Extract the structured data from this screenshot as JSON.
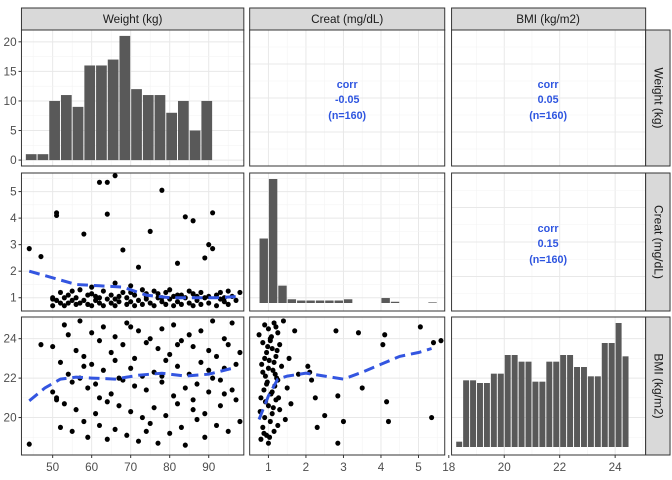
{
  "chart_data": {
    "type": "pairs",
    "variables": [
      "Weight (kg)",
      "Creat (mg/dL)",
      "BMI (kg/m2)"
    ],
    "colors": {
      "bar": "#595959",
      "point": "#000000",
      "smooth": "#3355e0",
      "corr": "#2e55e0",
      "strip": "#d9d9d9",
      "grid": "#ebebeb",
      "border": "#333333"
    },
    "axes": {
      "weight": {
        "range": [
          42,
          99
        ],
        "ticks": [
          50,
          60,
          70,
          80,
          90
        ]
      },
      "creat": {
        "range": [
          0.5,
          5.7
        ],
        "ticks": [
          1,
          2,
          3,
          4,
          5
        ]
      },
      "bmi": {
        "range": [
          18.1,
          25.1
        ],
        "ticks": [
          18,
          20,
          22,
          24
        ],
        "yticks": [
          20,
          22,
          24
        ]
      },
      "weight_count": {
        "range": [
          -1,
          22
        ],
        "ticks": [
          0,
          5,
          10,
          15,
          20
        ]
      }
    },
    "hist_weight": {
      "bins": [
        [
          43,
          46
        ],
        [
          46,
          49
        ],
        [
          49,
          52
        ],
        [
          52,
          55
        ],
        [
          55,
          58
        ],
        [
          58,
          61
        ],
        [
          61,
          64
        ],
        [
          64,
          67
        ],
        [
          67,
          70
        ],
        [
          70,
          73
        ],
        [
          73,
          76
        ],
        [
          76,
          79
        ],
        [
          79,
          82
        ],
        [
          82,
          85
        ],
        [
          85,
          88
        ],
        [
          88,
          91
        ],
        [
          91,
          94
        ],
        [
          94,
          97
        ]
      ],
      "counts": [
        1,
        1,
        10,
        11,
        9,
        16,
        16,
        17,
        21,
        12,
        11,
        11,
        8,
        10,
        5,
        10,
        0,
        0
      ],
      "note_unused": ""
    },
    "hist_creat": {
      "bins": [
        [
          0.75,
          1.0
        ],
        [
          1.0,
          1.25
        ],
        [
          1.25,
          1.5
        ],
        [
          1.5,
          1.75
        ],
        [
          1.75,
          2.0
        ],
        [
          2.0,
          2.25
        ],
        [
          2.25,
          2.5
        ],
        [
          2.5,
          2.75
        ],
        [
          2.75,
          3.0
        ],
        [
          3.0,
          3.25
        ],
        [
          3.5,
          3.75
        ],
        [
          3.75,
          4.0
        ],
        [
          4.0,
          4.25
        ],
        [
          4.25,
          4.5
        ],
        [
          5.0,
          5.25
        ],
        [
          5.25,
          5.5
        ]
      ],
      "counts": [
        0.52,
        1.0,
        0.14,
        0.03,
        0.02,
        0.02,
        0.02,
        0.02,
        0.02,
        0.03,
        0,
        0,
        0.04,
        0.01,
        0,
        0.005
      ]
    },
    "hist_bmi": {
      "bins": [
        [
          18.25,
          18.5
        ],
        [
          18.5,
          18.75
        ],
        [
          18.75,
          19.0
        ],
        [
          19.0,
          19.25
        ],
        [
          19.25,
          19.5
        ],
        [
          19.5,
          19.75
        ],
        [
          19.75,
          20.0
        ],
        [
          20.0,
          20.25
        ],
        [
          20.25,
          20.5
        ],
        [
          20.5,
          20.75
        ],
        [
          20.75,
          21.0
        ],
        [
          21.0,
          21.25
        ],
        [
          21.25,
          21.5
        ],
        [
          21.5,
          21.75
        ],
        [
          21.75,
          22.0
        ],
        [
          22.0,
          22.25
        ],
        [
          22.25,
          22.5
        ],
        [
          22.5,
          22.75
        ],
        [
          22.75,
          23.0
        ],
        [
          23.0,
          23.25
        ],
        [
          23.25,
          23.5
        ],
        [
          23.5,
          23.75
        ],
        [
          23.75,
          24.0
        ],
        [
          24.0,
          24.25
        ],
        [
          24.25,
          24.5
        ]
      ],
      "counts": [
        0.04,
        0.5,
        0.5,
        0.48,
        0.48,
        0.55,
        0.55,
        0.69,
        0.69,
        0.64,
        0.64,
        0.49,
        0.49,
        0.64,
        0.64,
        0.69,
        0.69,
        0.6,
        0.6,
        0.53,
        0.53,
        0.78,
        0.78,
        0.93,
        0.68
      ]
    },
    "corr": {
      "weight_creat": [
        "corr",
        "-0.05",
        "(n=160)"
      ],
      "weight_bmi": [
        "corr",
        "0.05",
        "(n=160)"
      ],
      "creat_bmi": [
        "corr",
        "0.15",
        "(n=160)"
      ]
    },
    "scatter_weight_creat": [
      [
        44,
        2.85
      ],
      [
        47,
        2.55
      ],
      [
        50,
        0.95
      ],
      [
        50,
        1.0
      ],
      [
        51,
        4.1
      ],
      [
        51,
        4.2
      ],
      [
        50,
        0.7
      ],
      [
        51,
        0.9
      ],
      [
        52,
        1.2
      ],
      [
        52,
        0.8
      ],
      [
        53,
        0.7
      ],
      [
        53,
        1.0
      ],
      [
        54,
        0.8
      ],
      [
        54,
        1.1
      ],
      [
        55,
        0.9
      ],
      [
        55,
        1.25
      ],
      [
        56,
        0.75
      ],
      [
        56,
        1.0
      ],
      [
        57,
        0.8
      ],
      [
        57,
        1.3
      ],
      [
        58,
        0.9
      ],
      [
        58,
        3.4
      ],
      [
        59,
        0.75
      ],
      [
        59,
        1.1
      ],
      [
        60,
        0.7
      ],
      [
        60,
        1.4
      ],
      [
        61,
        0.9
      ],
      [
        61,
        1.05
      ],
      [
        62,
        5.35
      ],
      [
        62,
        0.8
      ],
      [
        63,
        1.25
      ],
      [
        63,
        0.7
      ],
      [
        64,
        4.15
      ],
      [
        64,
        5.35
      ],
      [
        64,
        0.95
      ],
      [
        65,
        1.1
      ],
      [
        65,
        0.8
      ],
      [
        66,
        5.6
      ],
      [
        66,
        1.55
      ],
      [
        66,
        0.7
      ],
      [
        67,
        1.05
      ],
      [
        67,
        0.85
      ],
      [
        68,
        2.8
      ],
      [
        68,
        1.2
      ],
      [
        69,
        0.75
      ],
      [
        69,
        1.0
      ],
      [
        70,
        1.45
      ],
      [
        70,
        0.85
      ],
      [
        71,
        0.7
      ],
      [
        71,
        1.1
      ],
      [
        72,
        2.15
      ],
      [
        72,
        0.9
      ],
      [
        73,
        1.3
      ],
      [
        73,
        0.75
      ],
      [
        74,
        1.05
      ],
      [
        74,
        0.95
      ],
      [
        75,
        3.5
      ],
      [
        75,
        0.8
      ],
      [
        76,
        1.25
      ],
      [
        76,
        0.7
      ],
      [
        77,
        1.0
      ],
      [
        77,
        1.15
      ],
      [
        78,
        5.05
      ],
      [
        78,
        0.85
      ],
      [
        79,
        1.2
      ],
      [
        79,
        0.75
      ],
      [
        80,
        1.3
      ],
      [
        80,
        0.95
      ],
      [
        81,
        0.7
      ],
      [
        81,
        1.05
      ],
      [
        82,
        2.3
      ],
      [
        82,
        0.85
      ],
      [
        83,
        1.1
      ],
      [
        83,
        0.75
      ],
      [
        84,
        4.05
      ],
      [
        84,
        1.0
      ],
      [
        85,
        0.8
      ],
      [
        85,
        1.25
      ],
      [
        86,
        3.9
      ],
      [
        86,
        0.7
      ],
      [
        87,
        1.05
      ],
      [
        87,
        0.9
      ],
      [
        88,
        1.2
      ],
      [
        88,
        0.75
      ],
      [
        89,
        2.5
      ],
      [
        89,
        1.0
      ],
      [
        90,
        3.0
      ],
      [
        90,
        0.8
      ],
      [
        91,
        4.2
      ],
      [
        91,
        2.85
      ],
      [
        92,
        1.1
      ],
      [
        92,
        0.7
      ],
      [
        93,
        1.2
      ],
      [
        93,
        0.95
      ],
      [
        94,
        0.85
      ],
      [
        95,
        1.25
      ],
      [
        95,
        0.75
      ],
      [
        96,
        1.05
      ],
      [
        97,
        0.9
      ],
      [
        98,
        1.2
      ],
      [
        60,
        1.15
      ],
      [
        62,
        1.0
      ],
      [
        66,
        0.95
      ],
      [
        70,
        1.2
      ],
      [
        74,
        1.15
      ],
      [
        78,
        1.0
      ],
      [
        82,
        1.1
      ],
      [
        86,
        1.15
      ],
      [
        90,
        1.05
      ],
      [
        94,
        1.0
      ]
    ],
    "smooth_weight_creat": [
      [
        44,
        2.0
      ],
      [
        50,
        1.75
      ],
      [
        56,
        1.5
      ],
      [
        62,
        1.45
      ],
      [
        68,
        1.4
      ],
      [
        74,
        1.1
      ],
      [
        80,
        1.0
      ],
      [
        86,
        1.0
      ],
      [
        92,
        1.0
      ],
      [
        98,
        1.05
      ]
    ],
    "scatter_weight_bmi": [
      [
        44,
        18.65
      ],
      [
        47,
        23.7
      ],
      [
        50,
        21.3
      ],
      [
        50,
        23.6
      ],
      [
        51,
        20.9
      ],
      [
        51,
        21.0
      ],
      [
        52,
        22.8
      ],
      [
        52,
        19.5
      ],
      [
        53,
        24.7
      ],
      [
        53,
        20.7
      ],
      [
        54,
        22.2
      ],
      [
        54,
        24.2
      ],
      [
        55,
        21.8
      ],
      [
        55,
        19.3
      ],
      [
        56,
        23.4
      ],
      [
        56,
        20.4
      ],
      [
        57,
        24.9
      ],
      [
        57,
        22.0
      ],
      [
        58,
        19.8
      ],
      [
        58,
        23.1
      ],
      [
        59,
        21.5
      ],
      [
        59,
        19.0
      ],
      [
        60,
        24.3
      ],
      [
        60,
        22.7
      ],
      [
        61,
        20.2
      ],
      [
        61,
        21.7
      ],
      [
        62,
        23.9
      ],
      [
        62,
        19.6
      ],
      [
        63,
        22.4
      ],
      [
        63,
        24.6
      ],
      [
        64,
        20.8
      ],
      [
        64,
        18.9
      ],
      [
        65,
        23.3
      ],
      [
        65,
        21.2
      ],
      [
        66,
        24.1
      ],
      [
        66,
        19.4
      ],
      [
        67,
        22.0
      ],
      [
        67,
        20.6
      ],
      [
        68,
        23.7
      ],
      [
        68,
        21.9
      ],
      [
        69,
        19.1
      ],
      [
        69,
        24.8
      ],
      [
        70,
        22.5
      ],
      [
        70,
        20.3
      ],
      [
        71,
        23.0
      ],
      [
        71,
        21.6
      ],
      [
        72,
        18.8
      ],
      [
        72,
        24.4
      ],
      [
        73,
        22.1
      ],
      [
        73,
        20.0
      ],
      [
        74,
        23.8
      ],
      [
        74,
        21.4
      ],
      [
        75,
        19.7
      ],
      [
        75,
        24.0
      ],
      [
        76,
        22.3
      ],
      [
        76,
        20.5
      ],
      [
        77,
        23.5
      ],
      [
        77,
        18.7
      ],
      [
        78,
        21.8
      ],
      [
        78,
        24.5
      ],
      [
        79,
        20.1
      ],
      [
        79,
        22.9
      ],
      [
        80,
        19.2
      ],
      [
        80,
        23.2
      ],
      [
        81,
        21.1
      ],
      [
        81,
        24.7
      ],
      [
        82,
        20.7
      ],
      [
        82,
        22.6
      ],
      [
        83,
        19.5
      ],
      [
        83,
        23.9
      ],
      [
        84,
        21.5
      ],
      [
        84,
        18.6
      ],
      [
        85,
        24.2
      ],
      [
        85,
        22.2
      ],
      [
        86,
        20.4
      ],
      [
        86,
        23.6
      ],
      [
        87,
        19.9
      ],
      [
        87,
        21.7
      ],
      [
        88,
        24.4
      ],
      [
        88,
        22.8
      ],
      [
        89,
        20.2
      ],
      [
        89,
        19.0
      ],
      [
        90,
        23.4
      ],
      [
        90,
        21.3
      ],
      [
        91,
        24.9
      ],
      [
        91,
        22.0
      ],
      [
        92,
        19.6
      ],
      [
        92,
        23.1
      ],
      [
        93,
        21.9
      ],
      [
        93,
        20.6
      ],
      [
        94,
        24.0
      ],
      [
        94,
        22.5
      ],
      [
        95,
        19.3
      ],
      [
        95,
        23.7
      ],
      [
        96,
        21.4
      ],
      [
        96,
        24.8
      ],
      [
        97,
        20.9
      ],
      [
        97,
        22.7
      ],
      [
        98,
        23.3
      ],
      [
        98,
        19.8
      ],
      [
        58,
        22.6
      ],
      [
        62,
        21.0
      ],
      [
        66,
        22.9
      ],
      [
        70,
        24.6
      ],
      [
        74,
        19.3
      ],
      [
        78,
        22.1
      ],
      [
        82,
        23.7
      ],
      [
        86,
        20.9
      ],
      [
        90,
        22.4
      ],
      [
        94,
        21.2
      ]
    ],
    "smooth_weight_bmi": [
      [
        44,
        20.85
      ],
      [
        48,
        21.5
      ],
      [
        52,
        21.95
      ],
      [
        56,
        22.05
      ],
      [
        60,
        22.0
      ],
      [
        66,
        21.95
      ],
      [
        72,
        22.15
      ],
      [
        78,
        22.25
      ],
      [
        84,
        22.1
      ],
      [
        90,
        22.2
      ],
      [
        96,
        22.5
      ]
    ],
    "scatter_creat_bmi": [
      [
        0.75,
        24.2
      ],
      [
        0.78,
        20.3
      ],
      [
        0.8,
        18.9
      ],
      [
        0.82,
        22.7
      ],
      [
        0.85,
        19.5
      ],
      [
        0.85,
        23.8
      ],
      [
        0.88,
        21.4
      ],
      [
        0.9,
        24.7
      ],
      [
        0.9,
        20.0
      ],
      [
        0.92,
        22.1
      ],
      [
        0.95,
        19.1
      ],
      [
        0.95,
        23.3
      ],
      [
        0.97,
        21.8
      ],
      [
        1.0,
        24.5
      ],
      [
        1.0,
        20.6
      ],
      [
        1.0,
        18.7
      ],
      [
        1.02,
        22.9
      ],
      [
        1.05,
        19.8
      ],
      [
        1.05,
        24.0
      ],
      [
        1.07,
        21.2
      ],
      [
        1.1,
        23.5
      ],
      [
        1.1,
        20.2
      ],
      [
        1.12,
        22.4
      ],
      [
        1.15,
        19.3
      ],
      [
        1.15,
        24.8
      ],
      [
        1.17,
        21.6
      ],
      [
        1.2,
        23.1
      ],
      [
        1.2,
        20.9
      ],
      [
        1.22,
        22.0
      ],
      [
        1.25,
        19.6
      ],
      [
        1.25,
        24.3
      ],
      [
        1.27,
        21.0
      ],
      [
        1.3,
        23.7
      ],
      [
        1.3,
        20.4
      ],
      [
        1.35,
        22.6
      ],
      [
        1.4,
        24.9
      ],
      [
        1.45,
        19.9
      ],
      [
        1.5,
        21.5
      ],
      [
        1.55,
        23.0
      ],
      [
        1.6,
        20.7
      ],
      [
        1.7,
        24.4
      ],
      [
        1.8,
        22.2
      ],
      [
        0.8,
        21.0
      ],
      [
        0.85,
        22.3
      ],
      [
        0.9,
        23.0
      ],
      [
        0.95,
        21.7
      ],
      [
        1.0,
        22.5
      ],
      [
        1.05,
        23.9
      ],
      [
        1.1,
        21.3
      ],
      [
        1.15,
        22.8
      ],
      [
        1.2,
        24.6
      ],
      [
        1.25,
        21.9
      ],
      [
        0.88,
        19.2
      ],
      [
        0.92,
        20.8
      ],
      [
        0.98,
        23.6
      ],
      [
        1.03,
        19.0
      ],
      [
        1.08,
        24.1
      ],
      [
        1.13,
        20.5
      ],
      [
        1.18,
        22.2
      ],
      [
        1.23,
        23.4
      ],
      [
        2.05,
        22.6
      ],
      [
        2.1,
        22.3
      ],
      [
        2.15,
        21.9
      ],
      [
        2.25,
        21.0
      ],
      [
        2.3,
        19.5
      ],
      [
        2.5,
        20.1
      ],
      [
        2.8,
        24.4
      ],
      [
        2.85,
        18.7
      ],
      [
        2.85,
        21.1
      ],
      [
        3.0,
        19.8
      ],
      [
        3.4,
        24.3
      ],
      [
        3.5,
        21.5
      ],
      [
        4.05,
        23.7
      ],
      [
        4.1,
        24.2
      ],
      [
        4.15,
        20.8
      ],
      [
        4.2,
        19.8
      ],
      [
        5.05,
        24.6
      ],
      [
        5.35,
        20.0
      ],
      [
        5.4,
        23.8
      ],
      [
        5.6,
        23.9
      ]
    ],
    "smooth_creat_bmi": [
      [
        0.75,
        19.9
      ],
      [
        1.0,
        21.1
      ],
      [
        1.25,
        21.95
      ],
      [
        1.5,
        22.1
      ],
      [
        2.0,
        22.25
      ],
      [
        2.5,
        22.1
      ],
      [
        3.0,
        21.95
      ],
      [
        3.5,
        22.3
      ],
      [
        4.0,
        22.7
      ],
      [
        4.5,
        23.1
      ],
      [
        5.0,
        23.3
      ],
      [
        5.35,
        23.5
      ]
    ]
  }
}
